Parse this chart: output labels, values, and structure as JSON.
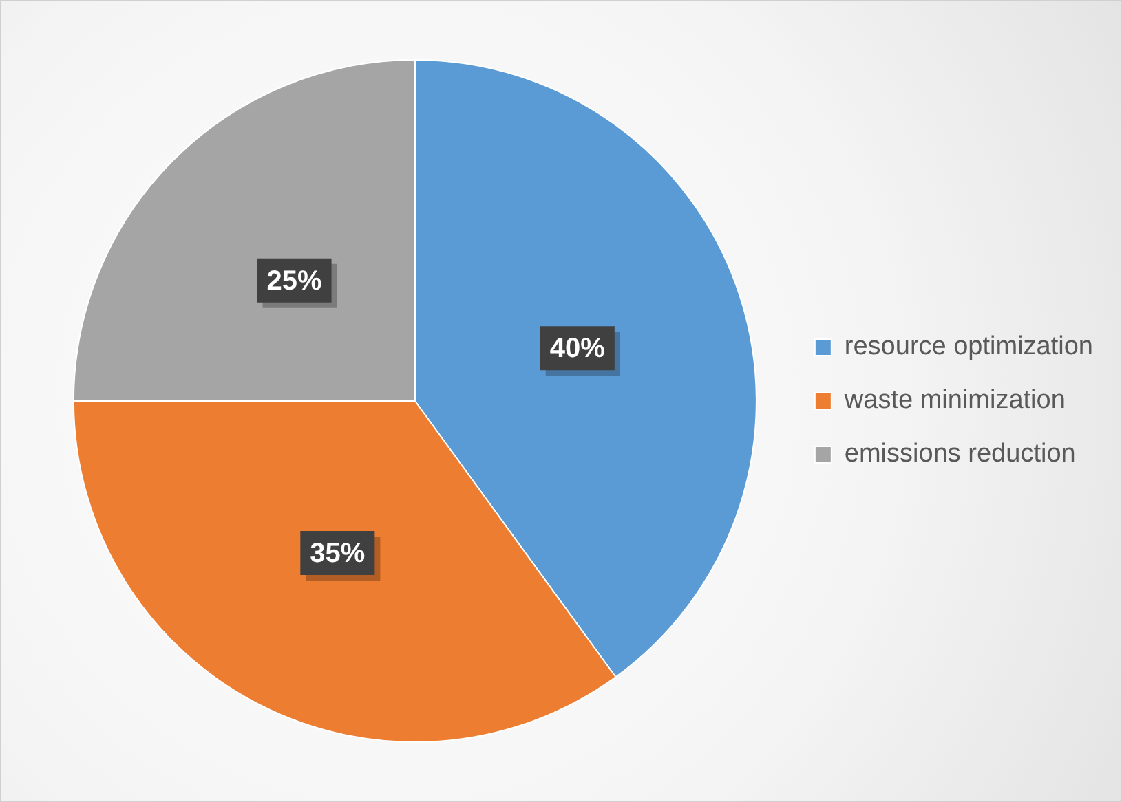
{
  "chart_data": {
    "type": "pie",
    "categories": [
      "resource optimization",
      "waste minimization",
      "emissions reduction"
    ],
    "values": [
      40,
      35,
      25
    ],
    "colors": [
      "#5b9bd5",
      "#ed7d31",
      "#a5a5a5"
    ],
    "value_labels": [
      "40%",
      "35%",
      "25%"
    ],
    "legend": "right"
  }
}
